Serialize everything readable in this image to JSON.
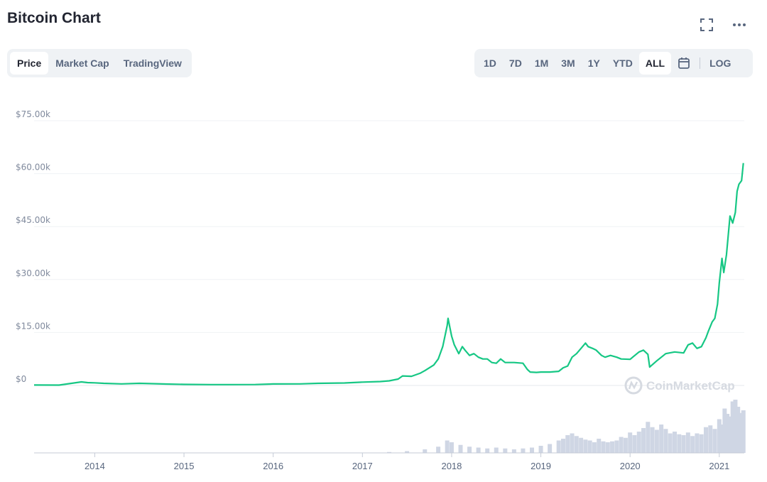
{
  "header": {
    "title": "Bitcoin Chart"
  },
  "tabs": {
    "left": [
      {
        "label": "Price",
        "active": true
      },
      {
        "label": "Market Cap",
        "active": false
      },
      {
        "label": "TradingView",
        "active": false
      }
    ],
    "right": [
      {
        "label": "1D",
        "active": false
      },
      {
        "label": "7D",
        "active": false
      },
      {
        "label": "1M",
        "active": false
      },
      {
        "label": "3M",
        "active": false
      },
      {
        "label": "1Y",
        "active": false
      },
      {
        "label": "YTD",
        "active": false
      },
      {
        "label": "ALL",
        "active": true
      }
    ],
    "log_label": "LOG"
  },
  "icons": {
    "fullscreen": "fullscreen-icon",
    "more": "more-icon",
    "calendar": "calendar-icon"
  },
  "watermark": "CoinMarketCap",
  "colors": {
    "line": "#16c784",
    "volume": "#cfd6e4",
    "grid": "#eff2f5",
    "accent_text": "#58667e"
  },
  "chart_data": {
    "type": "line",
    "title": "",
    "xlabel": "",
    "ylabel": "",
    "y_tick_labels": [
      "$0",
      "$15.00k",
      "$30.00k",
      "$45.00k",
      "$60.00k",
      "$75.00k"
    ],
    "y_ticks": [
      0,
      15000,
      30000,
      45000,
      60000,
      75000
    ],
    "ylim": [
      0,
      75000
    ],
    "x_tick_labels": [
      "2014",
      "2015",
      "2016",
      "2017",
      "2018",
      "2019",
      "2020",
      "2021"
    ],
    "x_ticks": [
      2014,
      2015,
      2016,
      2017,
      2018,
      2019,
      2020,
      2021
    ],
    "xlim": [
      2013.32,
      2021.28
    ],
    "grid": true,
    "series": [
      {
        "x": [
          2013.32,
          2013.6,
          2013.85,
          2013.92,
          2014.0,
          2014.1,
          2014.3,
          2014.5,
          2014.8,
          2015.0,
          2015.3,
          2015.5,
          2015.8,
          2016.0,
          2016.3,
          2016.5,
          2016.8,
          2017.0,
          2017.2,
          2017.3,
          2017.4,
          2017.45,
          2017.55,
          2017.65,
          2017.7,
          2017.8,
          2017.85,
          2017.9,
          2017.95,
          2017.96,
          2018.0,
          2018.03,
          2018.08,
          2018.12,
          2018.15,
          2018.2,
          2018.25,
          2018.3,
          2018.35,
          2018.4,
          2018.45,
          2018.5,
          2018.55,
          2018.6,
          2018.65,
          2018.7,
          2018.8,
          2018.85,
          2018.88,
          2018.95,
          2019.0,
          2019.1,
          2019.2,
          2019.25,
          2019.3,
          2019.35,
          2019.4,
          2019.45,
          2019.5,
          2019.53,
          2019.58,
          2019.62,
          2019.68,
          2019.72,
          2019.78,
          2019.85,
          2019.9,
          2020.0,
          2020.1,
          2020.15,
          2020.2,
          2020.22,
          2020.3,
          2020.4,
          2020.5,
          2020.6,
          2020.65,
          2020.7,
          2020.75,
          2020.8,
          2020.85,
          2020.88,
          2020.92,
          2020.95,
          2020.98,
          2021.0,
          2021.03,
          2021.05,
          2021.08,
          2021.12,
          2021.15,
          2021.18,
          2021.2,
          2021.22,
          2021.25,
          2021.27
        ],
        "values": [
          120,
          100,
          1000,
          800,
          750,
          600,
          450,
          600,
          400,
          300,
          250,
          240,
          260,
          420,
          450,
          600,
          700,
          950,
          1100,
          1300,
          1800,
          2700,
          2600,
          3500,
          4200,
          5800,
          7500,
          11000,
          17000,
          19000,
          14000,
          11500,
          9000,
          11000,
          10000,
          8500,
          9000,
          8000,
          7500,
          7500,
          6500,
          6300,
          7500,
          6500,
          6500,
          6500,
          6300,
          4500,
          3800,
          3700,
          3800,
          3800,
          4000,
          5000,
          5500,
          8000,
          9000,
          10500,
          12000,
          11000,
          10500,
          10000,
          8500,
          8000,
          8500,
          8000,
          7500,
          7400,
          9500,
          10000,
          8800,
          5200,
          7000,
          9000,
          9500,
          9200,
          11500,
          12000,
          10500,
          11000,
          13500,
          15500,
          18000,
          19000,
          23000,
          29000,
          36000,
          32000,
          37000,
          48000,
          46000,
          49000,
          55000,
          57000,
          58000,
          63000
        ]
      }
    ],
    "volume": {
      "x": [
        2017.3,
        2017.5,
        2017.7,
        2017.85,
        2017.95,
        2018.0,
        2018.1,
        2018.2,
        2018.3,
        2018.4,
        2018.5,
        2018.6,
        2018.7,
        2018.8,
        2018.9,
        2019.0,
        2019.1,
        2019.2,
        2019.25,
        2019.3,
        2019.35,
        2019.4,
        2019.45,
        2019.5,
        2019.55,
        2019.6,
        2019.65,
        2019.7,
        2019.75,
        2019.8,
        2019.85,
        2019.9,
        2019.95,
        2020.0,
        2020.05,
        2020.1,
        2020.15,
        2020.2,
        2020.25,
        2020.3,
        2020.35,
        2020.4,
        2020.45,
        2020.5,
        2020.55,
        2020.6,
        2020.65,
        2020.7,
        2020.75,
        2020.8,
        2020.85,
        2020.9,
        2020.95,
        2021.0,
        2021.03,
        2021.06,
        2021.09,
        2021.12,
        2021.15,
        2021.18,
        2021.21,
        2021.24,
        2021.27
      ],
      "values": [
        1,
        2,
        4,
        7,
        14,
        12,
        9,
        7,
        6,
        5,
        6,
        5,
        4,
        5,
        6,
        8,
        10,
        14,
        16,
        20,
        22,
        19,
        17,
        15,
        14,
        12,
        16,
        13,
        12,
        13,
        14,
        18,
        17,
        23,
        20,
        24,
        28,
        35,
        29,
        26,
        32,
        27,
        22,
        24,
        21,
        20,
        23,
        19,
        22,
        21,
        29,
        31,
        27,
        38,
        32,
        50,
        44,
        41,
        58,
        60,
        52,
        45,
        48
      ]
    }
  }
}
